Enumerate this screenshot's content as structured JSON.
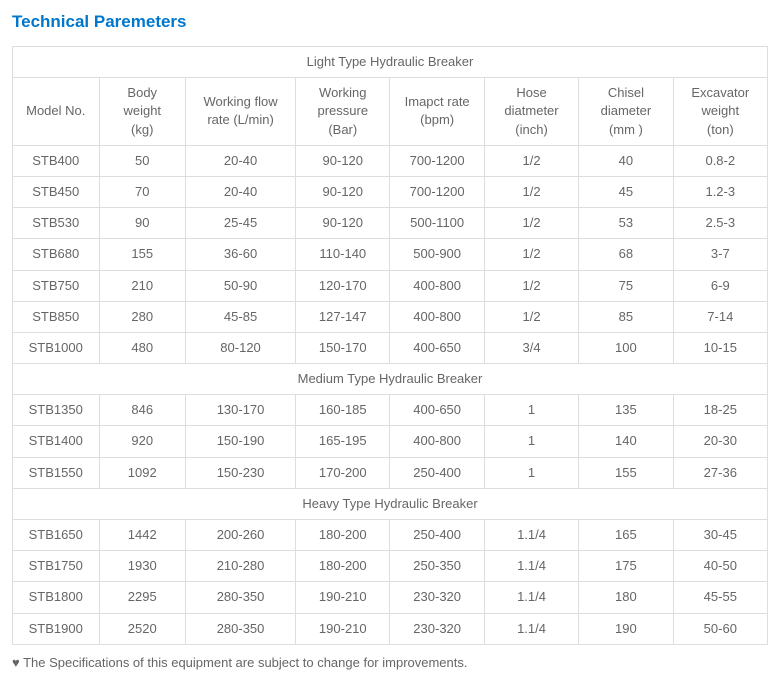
{
  "title": "Technical Paremeters",
  "columns": [
    "Model No.",
    "Body weight (kg)",
    "Working flow rate (L/min)",
    "Working pressure (Bar)",
    "Imapct rate (bpm)",
    "Hose diatmeter (inch)",
    "Chisel diameter (mm )",
    "Excavator weight (ton)"
  ],
  "sections": {
    "light": "Light Type Hydraulic Breaker",
    "medium": "Medium Type Hydraulic Breaker",
    "heavy": "Heavy Type Hydraulic Breaker"
  },
  "light": [
    {
      "model": "STB400",
      "body": "50",
      "flow": "20-40",
      "press": "90-120",
      "impact": "700-1200",
      "hose": "1/2",
      "chisel": "40",
      "ex": "0.8-2"
    },
    {
      "model": "STB450",
      "body": "70",
      "flow": "20-40",
      "press": "90-120",
      "impact": "700-1200",
      "hose": "1/2",
      "chisel": "45",
      "ex": "1.2-3"
    },
    {
      "model": "STB530",
      "body": "90",
      "flow": "25-45",
      "press": "90-120",
      "impact": "500-1100",
      "hose": "1/2",
      "chisel": "53",
      "ex": "2.5-3"
    },
    {
      "model": "STB680",
      "body": "155",
      "flow": "36-60",
      "press": "110-140",
      "impact": "500-900",
      "hose": "1/2",
      "chisel": "68",
      "ex": "3-7"
    },
    {
      "model": "STB750",
      "body": "210",
      "flow": "50-90",
      "press": "120-170",
      "impact": "400-800",
      "hose": "1/2",
      "chisel": "75",
      "ex": "6-9"
    },
    {
      "model": "STB850",
      "body": "280",
      "flow": "45-85",
      "press": "127-147",
      "impact": "400-800",
      "hose": "1/2",
      "chisel": "85",
      "ex": "7-14"
    },
    {
      "model": "STB1000",
      "body": "480",
      "flow": "80-120",
      "press": "150-170",
      "impact": "400-650",
      "hose": "3/4",
      "chisel": "100",
      "ex": "10-15"
    }
  ],
  "medium": [
    {
      "model": "STB1350",
      "body": "846",
      "flow": "130-170",
      "press": "160-185",
      "impact": "400-650",
      "hose": "1",
      "chisel": "135",
      "ex": "18-25"
    },
    {
      "model": "STB1400",
      "body": "920",
      "flow": "150-190",
      "press": "165-195",
      "impact": "400-800",
      "hose": "1",
      "chisel": "140",
      "ex": "20-30"
    },
    {
      "model": "STB1550",
      "body": "1092",
      "flow": "150-230",
      "press": "170-200",
      "impact": "250-400",
      "hose": "1",
      "chisel": "155",
      "ex": "27-36"
    }
  ],
  "heavy": [
    {
      "model": "STB1650",
      "body": "1442",
      "flow": "200-260",
      "press": "180-200",
      "impact": "250-400",
      "hose": "1.1/4",
      "chisel": "165",
      "ex": "30-45"
    },
    {
      "model": "STB1750",
      "body": "1930",
      "flow": "210-280",
      "press": "180-200",
      "impact": "250-350",
      "hose": "1.1/4",
      "chisel": "175",
      "ex": "40-50"
    },
    {
      "model": "STB1800",
      "body": "2295",
      "flow": "280-350",
      "press": "190-210",
      "impact": "230-320",
      "hose": "1.1/4",
      "chisel": "180",
      "ex": "45-55"
    },
    {
      "model": "STB1900",
      "body": "2520",
      "flow": "280-350",
      "press": "190-210",
      "impact": "230-320",
      "hose": "1.1/4",
      "chisel": "190",
      "ex": "50-60"
    }
  ],
  "note": "♥ The Specifications of this equipment are subject to change for improvements."
}
